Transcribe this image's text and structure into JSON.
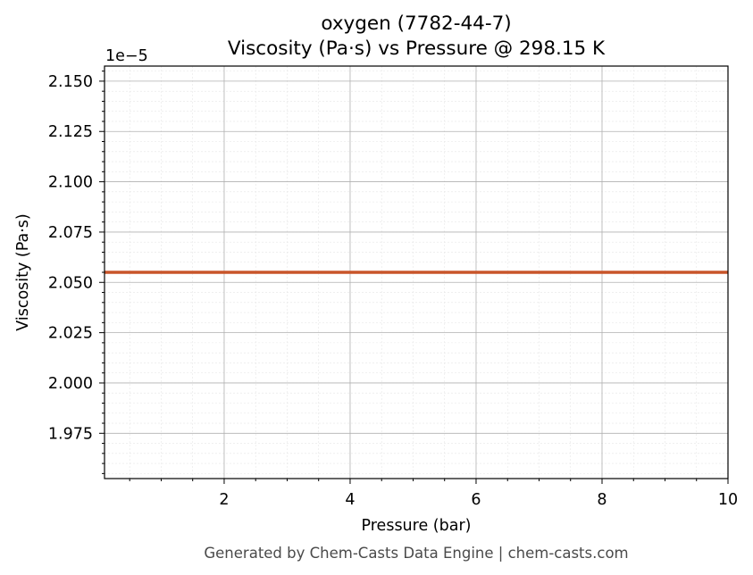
{
  "chart_data": {
    "type": "line",
    "title_line1": "oxygen (7782-44-7)",
    "title_line2": "Viscosity (Pa·s) vs Pressure @ 298.15 K",
    "xlabel": "Pressure (bar)",
    "ylabel": "Viscosity (Pa·s)",
    "y_offset_label": "1e−5",
    "xlim": [
      0.1,
      10
    ],
    "ylim": [
      1.9525,
      2.1575
    ],
    "x_ticks": [
      2,
      4,
      6,
      8,
      10
    ],
    "x_tick_labels": [
      "2",
      "4",
      "6",
      "8",
      "10"
    ],
    "y_ticks": [
      1.975,
      2.0,
      2.025,
      2.05,
      2.075,
      2.1,
      2.125,
      2.15
    ],
    "y_tick_labels": [
      "1.975",
      "2.000",
      "2.025",
      "2.050",
      "2.075",
      "2.100",
      "2.125",
      "2.150"
    ],
    "grid": true,
    "minor_grid": true,
    "series": [
      {
        "color": "#c8552a",
        "x": [
          0.1,
          10
        ],
        "y": [
          2.055,
          2.055
        ]
      }
    ],
    "footer": "Generated by Chem-Casts Data Engine | chem-casts.com"
  }
}
